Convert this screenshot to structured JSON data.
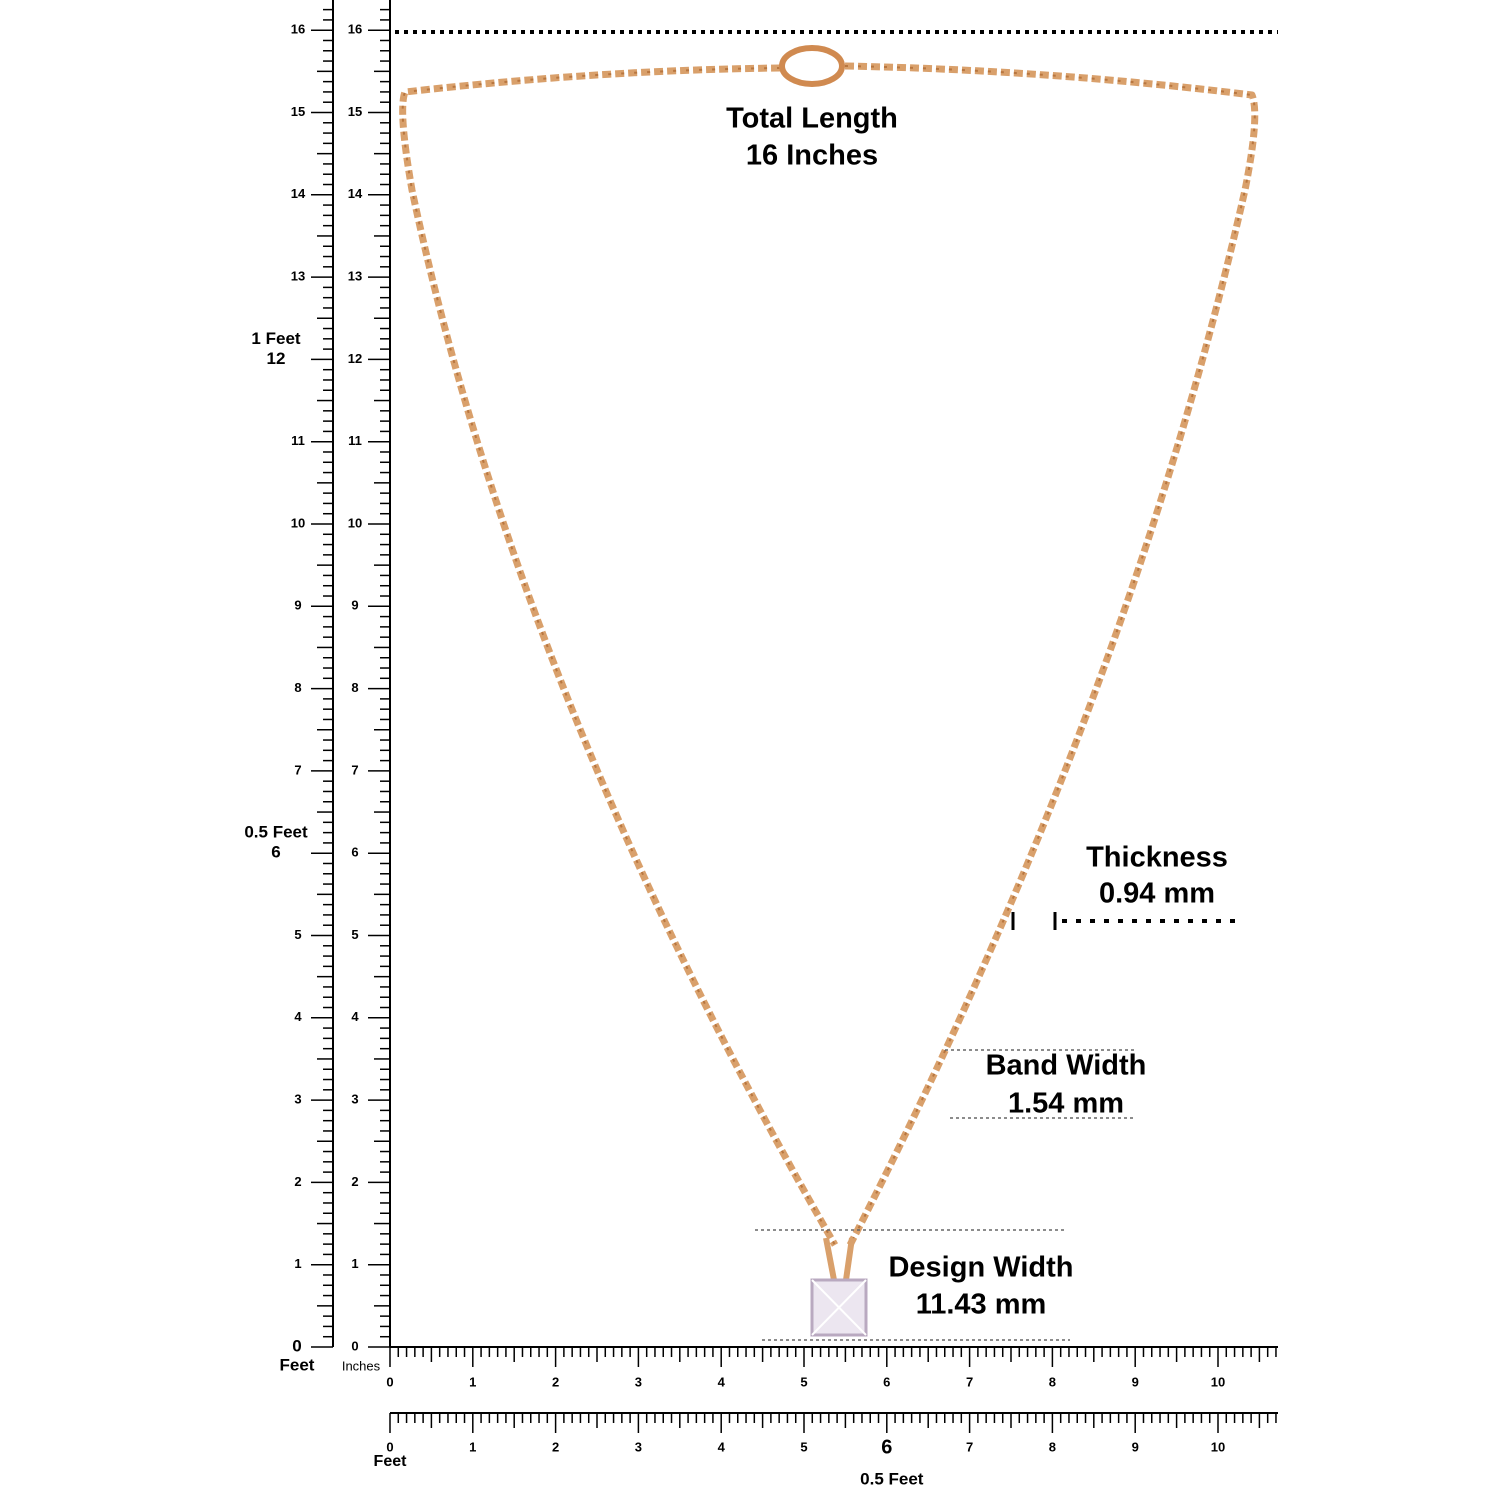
{
  "left_ruler": {
    "values": [
      1,
      2,
      3,
      4,
      5,
      7,
      8,
      9,
      10,
      11,
      13,
      14,
      15,
      16
    ],
    "feet_marks": [
      {
        "label": "1 Feet",
        "value": 12
      },
      {
        "label": "0.5 Feet",
        "value": 6
      },
      {
        "label": "Feet",
        "value": 0
      }
    ]
  },
  "inch_ruler": {
    "unit": "Inches",
    "values": [
      0,
      1,
      2,
      3,
      4,
      5,
      6,
      7,
      8,
      9,
      10,
      11,
      12,
      13,
      14,
      15,
      16
    ]
  },
  "bottom_ruler": {
    "values": [
      0,
      1,
      2,
      3,
      4,
      5,
      6,
      7,
      8,
      9,
      10
    ]
  },
  "feet_ruler": {
    "unit": "Feet",
    "values": [
      0,
      1,
      2,
      3,
      4,
      5,
      7,
      8,
      9,
      10
    ],
    "half_foot": {
      "value": 6,
      "label": "0.5 Feet"
    }
  },
  "annotations": {
    "total_length": {
      "title": "Total Length",
      "value": "16 Inches"
    },
    "thickness": {
      "title": "Thickness",
      "value": "0.94 mm"
    },
    "band_width": {
      "title": "Band Width",
      "value": "1.54 mm"
    },
    "design_width": {
      "title": "Design Width",
      "value": "11.43 mm"
    }
  }
}
